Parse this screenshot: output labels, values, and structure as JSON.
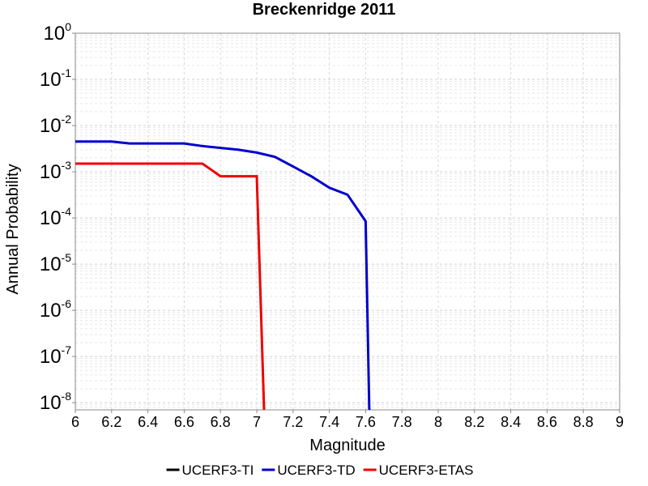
{
  "chart_data": {
    "type": "line",
    "title": "Breckenridge 2011",
    "xlabel": "Magnitude",
    "ylabel": "Annual Probability",
    "xlim": [
      6,
      9
    ],
    "ylim": [
      7e-09,
      1
    ],
    "yscale": "log",
    "grid": true,
    "legend_position": "bottom",
    "xticks": [
      "6",
      "6.2",
      "6.4",
      "6.6",
      "6.8",
      "7",
      "7.2",
      "7.4",
      "7.6",
      "7.8",
      "8",
      "8.2",
      "8.4",
      "8.6",
      "8.8",
      "9"
    ],
    "yticks": [
      {
        "base": "10",
        "exp": "0"
      },
      {
        "base": "10",
        "exp": "-1"
      },
      {
        "base": "10",
        "exp": "-2"
      },
      {
        "base": "10",
        "exp": "-3"
      },
      {
        "base": "10",
        "exp": "-4"
      },
      {
        "base": "10",
        "exp": "-5"
      },
      {
        "base": "10",
        "exp": "-6"
      },
      {
        "base": "10",
        "exp": "-7"
      },
      {
        "base": "10",
        "exp": "-8"
      }
    ],
    "series": [
      {
        "name": "UCERF3-TI",
        "color": "#000000",
        "x": [],
        "y": []
      },
      {
        "name": "UCERF3-TD",
        "color": "#0000cc",
        "x": [
          6.0,
          6.2,
          6.3,
          6.6,
          6.7,
          6.9,
          7.0,
          7.1,
          7.2,
          7.3,
          7.4,
          7.5,
          7.6,
          7.62
        ],
        "y": [
          0.0045,
          0.0045,
          0.0041,
          0.0041,
          0.0036,
          0.003,
          0.0026,
          0.0021,
          0.0013,
          0.0008,
          0.00045,
          0.00032,
          8.5e-05,
          7e-09
        ]
      },
      {
        "name": "UCERF3-ETAS",
        "color": "#ee0000",
        "x": [
          6.0,
          6.6,
          6.7,
          6.75,
          6.8,
          7.0,
          7.0,
          7.04
        ],
        "y": [
          0.0015,
          0.0015,
          0.0015,
          0.0011,
          0.0008,
          0.0008,
          0.0008,
          7e-09
        ]
      }
    ]
  }
}
